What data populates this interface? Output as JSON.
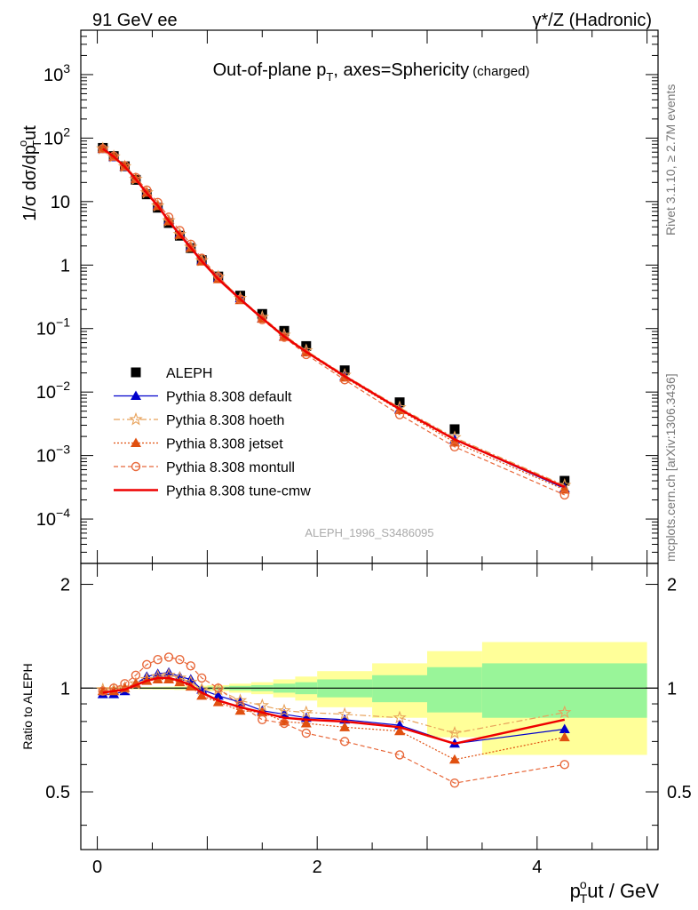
{
  "header": {
    "left": "91 GeV ee",
    "right": "γ*/Z (Hadronic)"
  },
  "side_labels": {
    "rivet": "Rivet 3.1.10, ≥ 2.7M events",
    "mcplots": "mcplots.cern.ch [arXiv:1306.3436]"
  },
  "watermark": "ALEPH_1996_S3486095",
  "chart_data": [
    {
      "type": "scatter",
      "panel": "main",
      "title": "Out-of-plane p_T, axes=Sphericity (charged)",
      "title_parts": {
        "main": "Out-of-plane p",
        "sub": "T",
        "rest": ", axes=Sphericity",
        "small": "(charged)"
      },
      "ylabel": "1/σ dσ/dp^o_T ut",
      "ylabel_parts": {
        "a": "1/σ dσ/dp",
        "sup": "o",
        "sub": "T",
        "b": "ut"
      },
      "xlabel": "p^o_T ut / GeV",
      "xlabel_parts": {
        "a": "p",
        "sup": "o",
        "sub": "T",
        "b": "ut / GeV"
      },
      "log_y": true,
      "xlim": [
        -0.15,
        5.1
      ],
      "ylim": [
        2e-05,
        5000
      ],
      "x_ticks": [
        0,
        2,
        4
      ],
      "y_ticks": [
        {
          "value": 0.0001,
          "label": "10^-4"
        },
        {
          "value": 0.001,
          "label": "10^-3"
        },
        {
          "value": 0.01,
          "label": "10^-2"
        },
        {
          "value": 0.1,
          "label": "10^-1"
        },
        {
          "value": 1,
          "label": "1"
        },
        {
          "value": 10,
          "label": "10"
        },
        {
          "value": 100,
          "label": "10^2"
        },
        {
          "value": 1000,
          "label": "10^3"
        }
      ],
      "legend_position": "bottom-left",
      "x": [
        0.05,
        0.15,
        0.25,
        0.35,
        0.45,
        0.55,
        0.65,
        0.75,
        0.85,
        0.95,
        1.1,
        1.3,
        1.5,
        1.7,
        1.9,
        2.25,
        2.75,
        3.25,
        4.25
      ],
      "series": [
        {
          "name": "ALEPH",
          "color": "#000000",
          "marker": "square",
          "line": "none",
          "values": [
            70,
            52,
            36,
            22,
            13,
            8.0,
            4.6,
            2.9,
            1.85,
            1.2,
            0.66,
            0.33,
            0.17,
            0.092,
            0.053,
            0.022,
            0.0069,
            0.0026,
            0.0004
          ]
        },
        {
          "name": "Pythia 8.308 default",
          "color": "#0000cc",
          "marker": "triangle",
          "line": "solid",
          "values": [
            67,
            50,
            35.3,
            22.7,
            14.0,
            8.8,
            5.1,
            3.13,
            1.96,
            1.19,
            0.63,
            0.3,
            0.145,
            0.075,
            0.043,
            0.0178,
            0.0054,
            0.00178,
            0.000304
          ]
        },
        {
          "name": "Pythia 8.308 hoeth",
          "color": "#e8a25a",
          "marker": "star",
          "line": "dashdot",
          "values": [
            68,
            51,
            35.6,
            22.5,
            13.8,
            8.6,
            5.0,
            3.05,
            1.92,
            1.18,
            0.65,
            0.3,
            0.151,
            0.079,
            0.045,
            0.0185,
            0.0057,
            0.00192,
            0.00034
          ]
        },
        {
          "name": "Pythia 8.308 jetset",
          "color": "#e05010",
          "marker": "triangle",
          "line": "dotted",
          "values": [
            68,
            51,
            35.6,
            22.7,
            13.8,
            8.5,
            4.9,
            3.0,
            1.87,
            1.14,
            0.6,
            0.28,
            0.143,
            0.074,
            0.042,
            0.0169,
            0.0052,
            0.00161,
            0.00029
          ]
        },
        {
          "name": "Pythia 8.308 montull",
          "color": "#e8683a",
          "marker": "circle",
          "line": "dashed",
          "values": [
            68,
            52,
            36.8,
            24.0,
            15.2,
            9.7,
            5.7,
            3.5,
            2.13,
            1.28,
            0.66,
            0.29,
            0.138,
            0.073,
            0.039,
            0.0156,
            0.0044,
            0.00137,
            0.00024
          ]
        },
        {
          "name": "Pythia 8.308 tune-cmw",
          "color": "#ee0000",
          "marker": "none",
          "line": "solid-thick",
          "values": [
            68,
            51,
            35.4,
            22.5,
            13.6,
            8.6,
            4.95,
            3.02,
            1.88,
            1.15,
            0.6,
            0.29,
            0.145,
            0.075,
            0.043,
            0.0178,
            0.0054,
            0.00179,
            0.00032
          ]
        }
      ]
    },
    {
      "type": "line",
      "panel": "ratio",
      "ylabel": "Ratio to ALEPH",
      "xlim": [
        -0.15,
        5.1
      ],
      "ylim": [
        0.34,
        2.3
      ],
      "x_ticks": [
        0,
        2,
        4
      ],
      "y_ticks": [
        0.5,
        1,
        2
      ],
      "bins": [
        0,
        0.1,
        0.2,
        0.3,
        0.4,
        0.5,
        0.6,
        0.7,
        0.8,
        0.9,
        1.0,
        1.2,
        1.4,
        1.6,
        1.8,
        2.0,
        2.5,
        3.0,
        3.5,
        5.0
      ],
      "band_stat": [
        0.003,
        0.003,
        0.003,
        0.004,
        0.004,
        0.005,
        0.005,
        0.006,
        0.007,
        0.008,
        0.01,
        0.015,
        0.02,
        0.03,
        0.04,
        0.06,
        0.09,
        0.15,
        0.18
      ],
      "band_total": [
        0.006,
        0.006,
        0.006,
        0.007,
        0.008,
        0.009,
        0.01,
        0.012,
        0.014,
        0.016,
        0.02,
        0.03,
        0.04,
        0.06,
        0.08,
        0.12,
        0.18,
        0.28,
        0.36
      ],
      "x": [
        0.05,
        0.15,
        0.25,
        0.35,
        0.45,
        0.55,
        0.65,
        0.75,
        0.85,
        0.95,
        1.1,
        1.3,
        1.5,
        1.7,
        1.9,
        2.25,
        2.75,
        3.25,
        4.25
      ],
      "series": [
        {
          "name": "Pythia 8.308 default",
          "color": "#0000cc",
          "marker": "triangle",
          "line": "solid",
          "values": [
            0.96,
            0.96,
            0.98,
            1.03,
            1.08,
            1.1,
            1.11,
            1.08,
            1.06,
            0.99,
            0.95,
            0.91,
            0.86,
            0.84,
            0.82,
            0.81,
            0.78,
            0.69,
            0.76
          ]
        },
        {
          "name": "Pythia 8.308 hoeth",
          "color": "#e8a25a",
          "marker": "star",
          "line": "dashdot",
          "values": [
            0.99,
            0.99,
            1.0,
            1.03,
            1.06,
            1.08,
            1.09,
            1.07,
            1.04,
            0.99,
            0.99,
            0.92,
            0.89,
            0.86,
            0.85,
            0.84,
            0.82,
            0.74,
            0.85
          ]
        },
        {
          "name": "Pythia 8.308 jetset",
          "color": "#e05010",
          "marker": "triangle",
          "line": "dotted",
          "values": [
            0.98,
            0.98,
            1.0,
            1.03,
            1.05,
            1.06,
            1.06,
            1.04,
            1.01,
            0.95,
            0.91,
            0.86,
            0.85,
            0.8,
            0.79,
            0.77,
            0.75,
            0.62,
            0.72
          ]
        },
        {
          "name": "Pythia 8.308 montull",
          "color": "#e8683a",
          "marker": "circle",
          "line": "dashed",
          "values": [
            0.98,
            1.0,
            1.03,
            1.09,
            1.17,
            1.21,
            1.23,
            1.21,
            1.16,
            1.07,
            1.0,
            0.89,
            0.81,
            0.79,
            0.74,
            0.7,
            0.64,
            0.53,
            0.6
          ]
        },
        {
          "name": "Pythia 8.308 tune-cmw",
          "color": "#ee0000",
          "marker": "none",
          "line": "solid-thick",
          "values": [
            0.97,
            0.98,
            0.99,
            1.02,
            1.05,
            1.07,
            1.07,
            1.05,
            1.02,
            0.97,
            0.92,
            0.88,
            0.85,
            0.82,
            0.81,
            0.8,
            0.77,
            0.69,
            0.81
          ]
        }
      ]
    }
  ]
}
